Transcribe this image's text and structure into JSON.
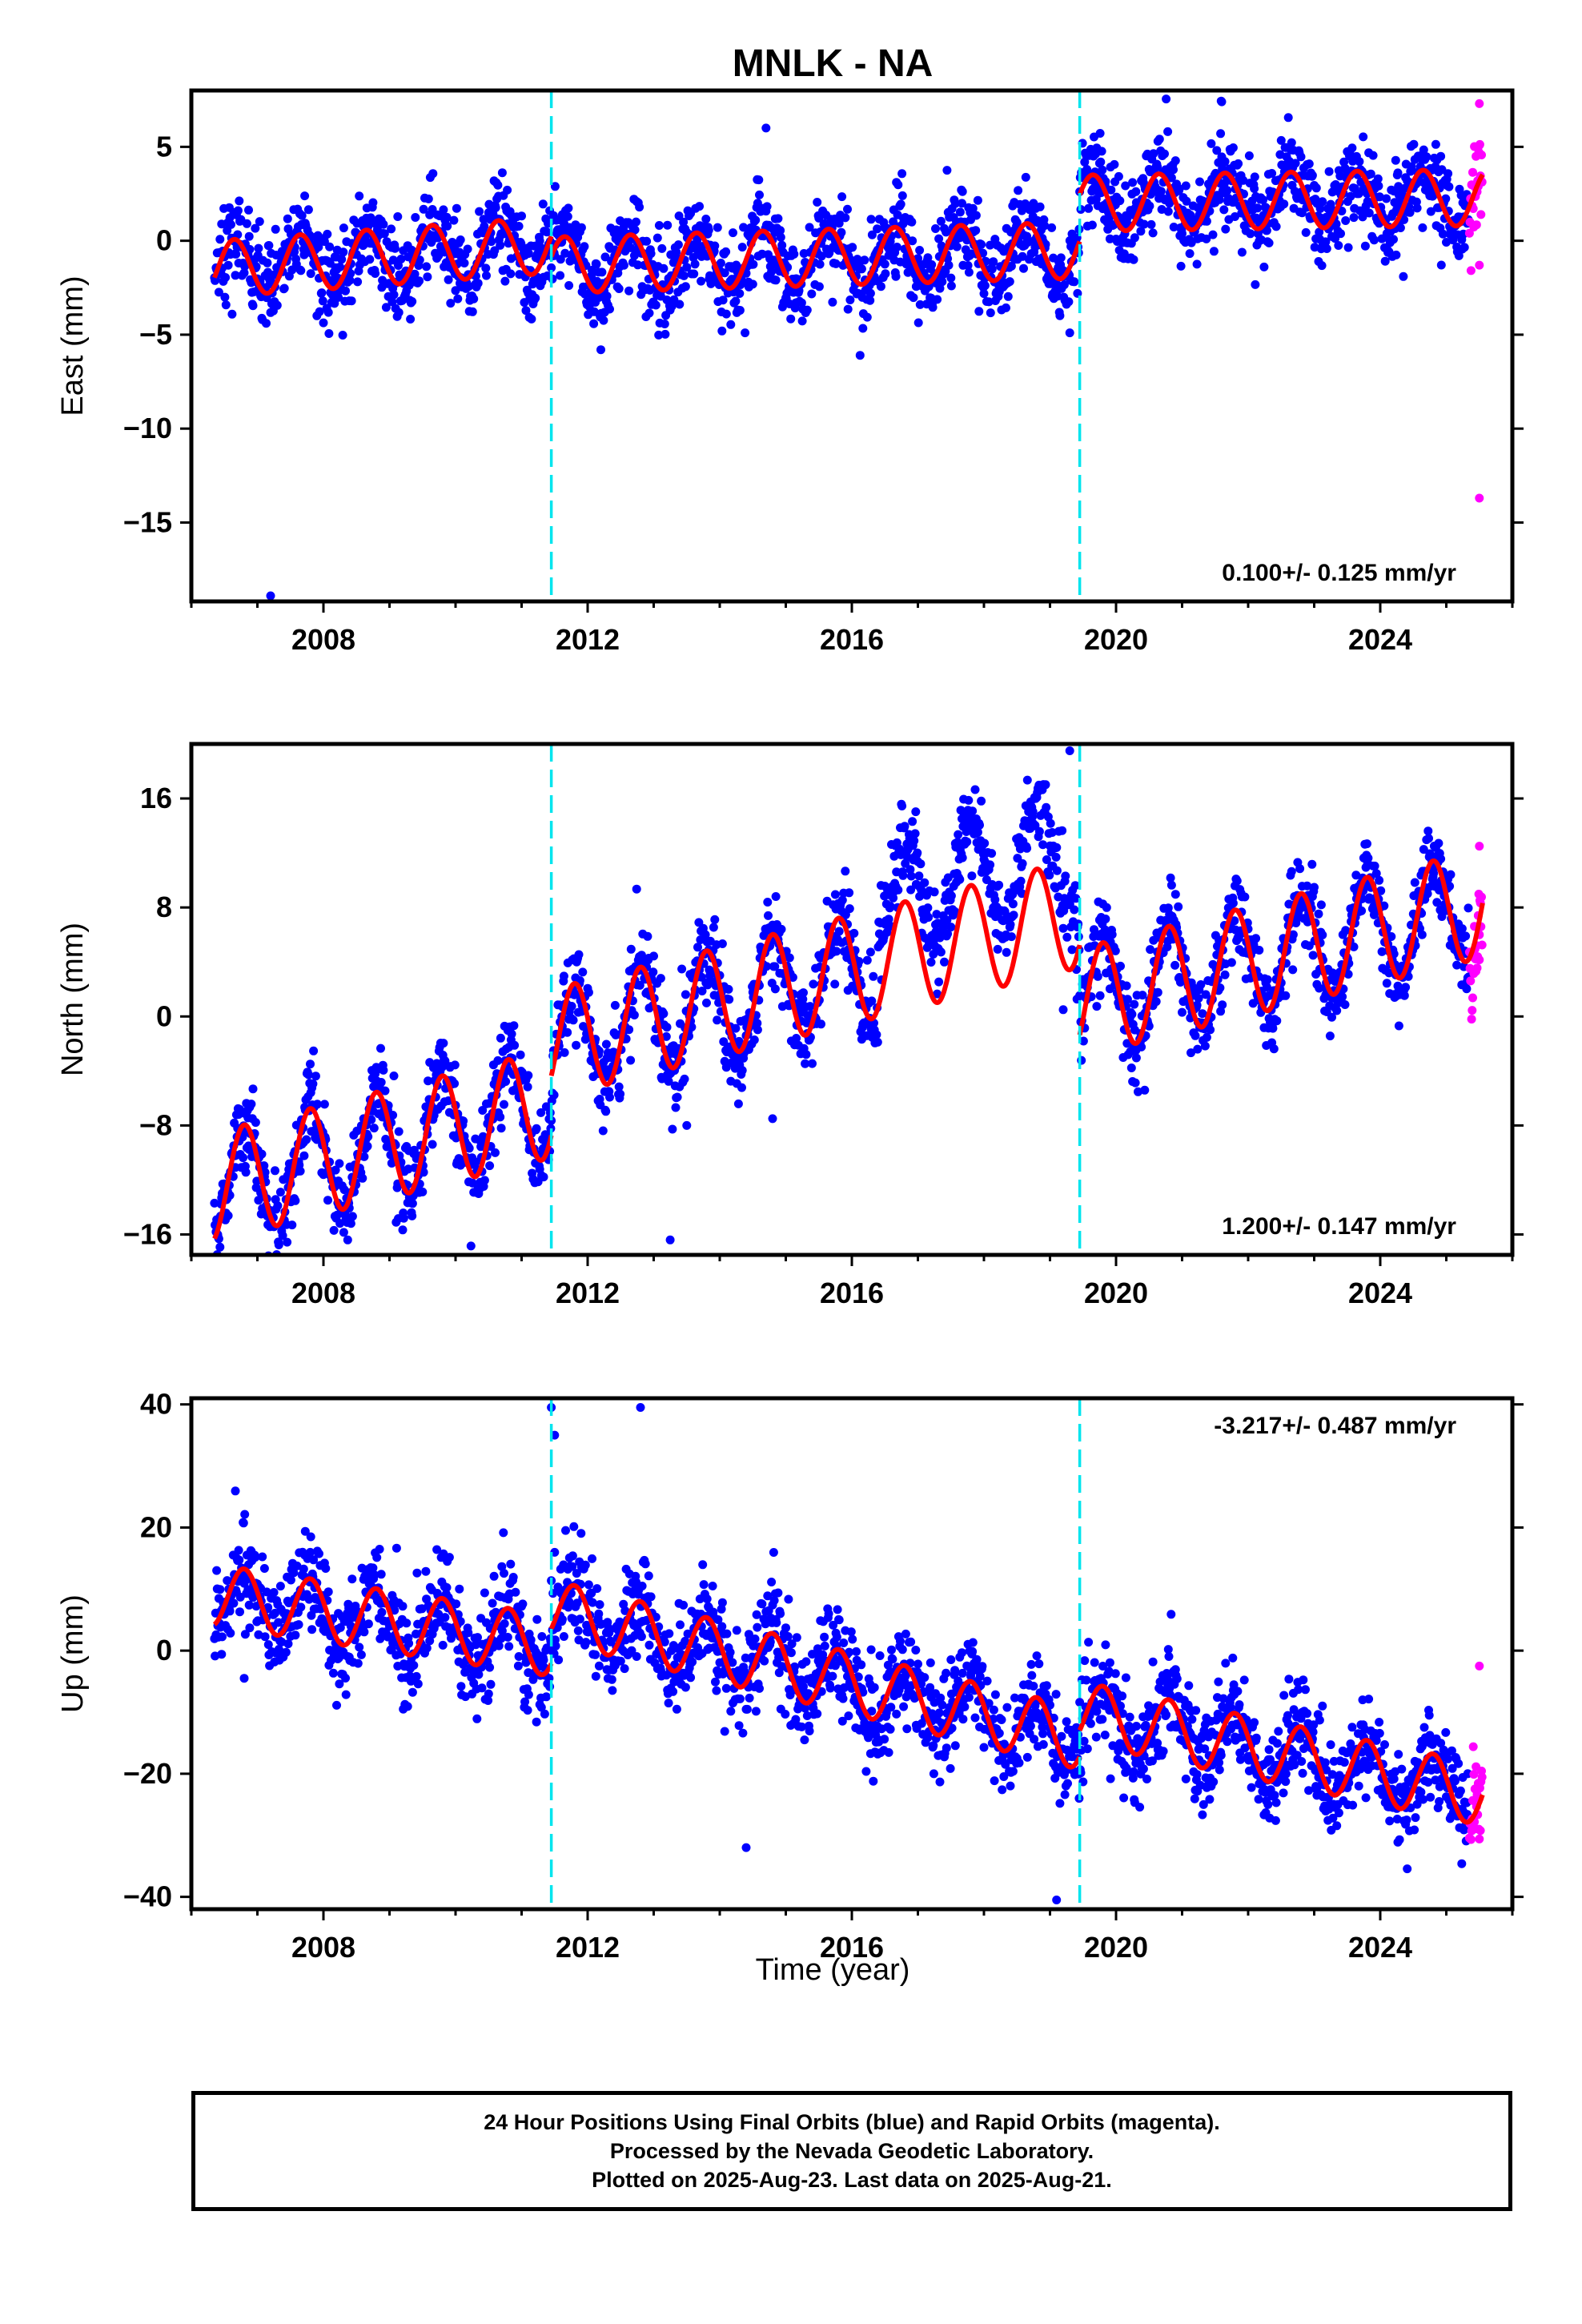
{
  "title": "MNLK - NA",
  "xlabel": "Time (year)",
  "footer": {
    "line1": "24 Hour Positions Using Final Orbits (blue) and Rapid Orbits (magenta).",
    "line2": "Processed by the Nevada Geodetic Laboratory.",
    "line3": "Plotted on 2025-Aug-23. Last data on 2025-Aug-21."
  },
  "colors": {
    "final_orbits": "#0000ff",
    "rapid_orbits": "#ff00ff",
    "model_fit": "#ff0000",
    "breaks": "#00e5ee"
  },
  "chart_data": [
    {
      "type": "scatter",
      "name": "east",
      "ylabel": "East (mm)",
      "rate_text": "0.100+/- 0.125 mm/yr",
      "rate_position": "bottom-right",
      "xlim": [
        2006.0,
        2026.0
      ],
      "ylim": [
        -19.2,
        8.0
      ],
      "xticks": [
        2008,
        2012,
        2016,
        2020,
        2024
      ],
      "yticks": [
        5,
        0,
        -5,
        -10,
        -15
      ],
      "grid": false,
      "breaks": [
        2011.45,
        2019.45
      ],
      "data_start": 2006.35,
      "data_end": 2025.55,
      "rapid_start": 2025.35,
      "segments": [
        {
          "from": 2006.35,
          "to": 2011.45,
          "offset": -1.5,
          "trend": 0.25
        },
        {
          "from": 2011.45,
          "to": 2019.45,
          "offset": -1.3,
          "trend": 0.1
        },
        {
          "from": 2019.45,
          "to": 2025.6,
          "offset": 2.0,
          "trend": 0.05
        }
      ],
      "annual_amplitude": 1.5,
      "annual_phase": 0.4,
      "noise_sd": 1.2,
      "series": [
        {
          "name": "Final Orbits",
          "color": "#0000ff"
        },
        {
          "name": "Rapid Orbits",
          "color": "#ff00ff"
        },
        {
          "name": "Model",
          "color": "#ff0000"
        }
      ],
      "outliers": [
        {
          "x": 2007.2,
          "y": -18.9
        },
        {
          "x": 2014.7,
          "y": 6.0
        },
        {
          "x": 2019.3,
          "y": -4.9
        },
        {
          "x": 2021.6,
          "y": 7.4
        },
        {
          "x": 2025.5,
          "y": -13.7
        },
        {
          "x": 2025.5,
          "y": -1.3
        },
        {
          "x": 2025.5,
          "y": 7.3
        }
      ]
    },
    {
      "type": "scatter",
      "name": "north",
      "ylabel": "North (mm)",
      "rate_text": "1.200+/- 0.147 mm/yr",
      "rate_position": "bottom-right",
      "xlim": [
        2006.0,
        2026.0
      ],
      "ylim": [
        -17.5,
        20.0
      ],
      "xticks": [
        2008,
        2012,
        2016,
        2020,
        2024
      ],
      "yticks": [
        16,
        8,
        0,
        -8,
        -16
      ],
      "grid": false,
      "breaks": [
        2011.45,
        2019.45
      ],
      "data_start": 2006.35,
      "data_end": 2025.55,
      "rapid_start": 2025.35,
      "segments": [
        {
          "from": 2006.35,
          "to": 2011.45,
          "offset": -12.5,
          "trend": 1.2
        },
        {
          "from": 2011.45,
          "to": 2019.45,
          "offset": -2.0,
          "trend": 1.2
        },
        {
          "from": 2019.45,
          "to": 2025.6,
          "offset": 1.0,
          "trend": 1.2
        }
      ],
      "annual_amplitude": 4.0,
      "annual_phase": 0.55,
      "noise_sd": 1.6,
      "hump": {
        "from": 2016.4,
        "to": 2019.4,
        "add": 4.5
      },
      "series": [
        {
          "name": "Final Orbits",
          "color": "#0000ff"
        },
        {
          "name": "Rapid Orbits",
          "color": "#ff00ff"
        },
        {
          "name": "Model",
          "color": "#ff0000"
        }
      ],
      "outliers": [
        {
          "x": 2013.25,
          "y": -16.4
        },
        {
          "x": 2019.3,
          "y": 19.5
        },
        {
          "x": 2019.2,
          "y": 0.5
        },
        {
          "x": 2013.5,
          "y": -8.0
        },
        {
          "x": 2014.8,
          "y": -7.5
        },
        {
          "x": 2025.5,
          "y": 12.5
        },
        {
          "x": 2025.5,
          "y": 6.0
        }
      ]
    },
    {
      "type": "scatter",
      "name": "up",
      "ylabel": "Up (mm)",
      "rate_text": "-3.217+/- 0.487 mm/yr",
      "rate_position": "top-right",
      "xlim": [
        2006.0,
        2026.0
      ],
      "ylim": [
        -42.0,
        41.0
      ],
      "xticks": [
        2008,
        2012,
        2016,
        2020,
        2024
      ],
      "yticks": [
        40,
        20,
        0,
        -20,
        -40
      ],
      "grid": false,
      "breaks": [
        2011.45,
        2019.45
      ],
      "data_start": 2006.35,
      "data_end": 2025.55,
      "rapid_start": 2025.35,
      "segments": [
        {
          "from": 2006.35,
          "to": 2011.45,
          "offset": 9.0,
          "trend": -1.6
        },
        {
          "from": 2011.45,
          "to": 2019.45,
          "offset": 6.5,
          "trend": -2.6
        },
        {
          "from": 2019.45,
          "to": 2025.6,
          "offset": -10.0,
          "trend": -2.2
        }
      ],
      "annual_amplitude": 5.0,
      "annual_phase": 0.55,
      "noise_sd": 4.0,
      "series": [
        {
          "name": "Final Orbits",
          "color": "#0000ff"
        },
        {
          "name": "Rapid Orbits",
          "color": "#ff00ff"
        },
        {
          "name": "Model",
          "color": "#ff0000"
        }
      ],
      "outliers": [
        {
          "x": 2006.8,
          "y": -4.5
        },
        {
          "x": 2011.45,
          "y": 39.5
        },
        {
          "x": 2011.5,
          "y": 35.0
        },
        {
          "x": 2012.8,
          "y": 39.5
        },
        {
          "x": 2014.4,
          "y": -32.0
        },
        {
          "x": 2019.1,
          "y": -40.5
        },
        {
          "x": 2025.5,
          "y": -2.5
        },
        {
          "x": 2025.5,
          "y": -24.0
        }
      ]
    }
  ]
}
